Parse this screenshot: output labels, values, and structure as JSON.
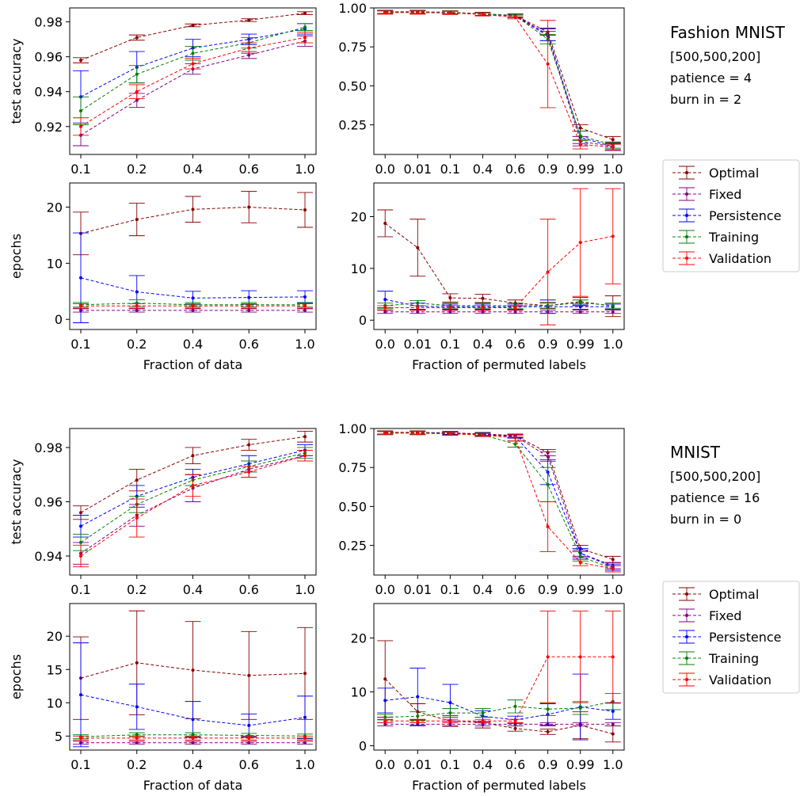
{
  "figure": {
    "legend_labels": [
      "Optimal",
      "Fixed",
      "Persistence",
      "Training",
      "Validation"
    ],
    "series_colors": {
      "Optimal": "#8b0000",
      "Fixed": "#800080",
      "Persistence": "#0000ff",
      "Training": "#008000",
      "Validation": "#ff0000"
    },
    "blocks": [
      {
        "dataset": "Fashion MNIST",
        "architecture": "[500,500,200]",
        "patience": "patience = 4",
        "burn_in": "burn in = 2"
      },
      {
        "dataset": "MNIST",
        "architecture": "[500,500,200]",
        "patience": "patience = 16",
        "burn_in": "burn in = 0"
      }
    ]
  },
  "chart_data": [
    {
      "type": "line",
      "panel": "fashion-test-accuracy-vs-data-fraction",
      "xlabel": "",
      "ylabel": "test accuracy",
      "categories": [
        "0.1",
        "0.2",
        "0.4",
        "0.6",
        "1.0"
      ],
      "ylim": [
        0.904,
        0.988
      ],
      "yticks": [
        0.92,
        0.94,
        0.96,
        0.98
      ],
      "ytick_labels": [
        "0.92",
        "0.94",
        "0.96",
        "0.98"
      ],
      "series": [
        {
          "name": "Optimal",
          "values": [
            0.958,
            0.971,
            0.978,
            0.981,
            0.985
          ],
          "errors": [
            0.0015,
            0.0015,
            0.0008,
            0.0008,
            0.0008
          ]
        },
        {
          "name": "Fixed",
          "values": [
            0.915,
            0.935,
            0.953,
            0.961,
            0.969
          ],
          "errors": [
            0.006,
            0.004,
            0.003,
            0.002,
            0.003
          ]
        },
        {
          "name": "Persistence",
          "values": [
            0.937,
            0.954,
            0.965,
            0.97,
            0.976
          ],
          "errors": [
            0.015,
            0.009,
            0.005,
            0.003,
            0.003
          ]
        },
        {
          "name": "Training",
          "values": [
            0.929,
            0.95,
            0.962,
            0.968,
            0.977
          ],
          "errors": [
            0.008,
            0.005,
            0.004,
            0.003,
            0.002
          ]
        },
        {
          "name": "Validation",
          "values": [
            0.92,
            0.94,
            0.956,
            0.965,
            0.971
          ],
          "errors": [
            0.005,
            0.004,
            0.003,
            0.003,
            0.003
          ]
        }
      ]
    },
    {
      "type": "line",
      "panel": "fashion-test-accuracy-vs-permuted-labels",
      "xlabel": "",
      "ylabel": "",
      "categories": [
        "0.0",
        "0.01",
        "0.1",
        "0.4",
        "0.6",
        "0.9",
        "0.99",
        "1.0"
      ],
      "ylim": [
        0.06,
        1.0
      ],
      "yticks": [
        0.25,
        0.5,
        0.75,
        1.0
      ],
      "ytick_labels": [
        "0.25",
        "0.50",
        "0.75",
        "1.00"
      ],
      "series": [
        {
          "name": "Optimal",
          "values": [
            0.975,
            0.975,
            0.972,
            0.962,
            0.952,
            0.845,
            0.23,
            0.155
          ],
          "errors": [
            0.01,
            0.01,
            0.01,
            0.01,
            0.01,
            0.02,
            0.02,
            0.02
          ]
        },
        {
          "name": "Fixed",
          "values": [
            0.972,
            0.972,
            0.97,
            0.96,
            0.948,
            0.82,
            0.145,
            0.11
          ],
          "errors": [
            0.01,
            0.01,
            0.01,
            0.01,
            0.01,
            0.03,
            0.03,
            0.02
          ]
        },
        {
          "name": "Persistence",
          "values": [
            0.972,
            0.972,
            0.97,
            0.96,
            0.95,
            0.83,
            0.17,
            0.11
          ],
          "errors": [
            0.01,
            0.01,
            0.01,
            0.01,
            0.01,
            0.04,
            0.04,
            0.02
          ]
        },
        {
          "name": "Training",
          "values": [
            0.972,
            0.972,
            0.97,
            0.96,
            0.95,
            0.8,
            0.18,
            0.12
          ],
          "errors": [
            0.01,
            0.01,
            0.01,
            0.01,
            0.01,
            0.03,
            0.03,
            0.02
          ]
        },
        {
          "name": "Validation",
          "values": [
            0.97,
            0.97,
            0.968,
            0.958,
            0.94,
            0.64,
            0.125,
            0.105
          ],
          "errors": [
            0.01,
            0.01,
            0.01,
            0.01,
            0.01,
            0.28,
            0.03,
            0.02
          ]
        }
      ]
    },
    {
      "type": "line",
      "panel": "fashion-epochs-vs-data-fraction",
      "xlabel": "Fraction of data",
      "ylabel": "epochs",
      "categories": [
        "0.1",
        "0.2",
        "0.4",
        "0.6",
        "1.0"
      ],
      "ylim": [
        -1.8,
        24.3
      ],
      "yticks": [
        0,
        10,
        20
      ],
      "ytick_labels": [
        "0",
        "10",
        "20"
      ],
      "series": [
        {
          "name": "Optimal",
          "values": [
            15.3,
            17.8,
            19.6,
            20.0,
            19.5
          ],
          "errors": [
            3.8,
            2.9,
            2.3,
            2.8,
            3.1
          ]
        },
        {
          "name": "Fixed",
          "values": [
            1.6,
            1.6,
            1.6,
            1.6,
            1.6
          ],
          "errors": [
            0.3,
            0.3,
            0.3,
            0.3,
            0.3
          ]
        },
        {
          "name": "Persistence",
          "values": [
            7.4,
            4.9,
            3.8,
            3.9,
            4.0
          ],
          "errors": [
            8.0,
            2.9,
            1.2,
            1.2,
            1.1
          ]
        },
        {
          "name": "Training",
          "values": [
            2.6,
            2.9,
            2.6,
            2.6,
            2.6
          ],
          "errors": [
            0.4,
            0.6,
            0.4,
            0.4,
            0.4
          ]
        },
        {
          "name": "Validation",
          "values": [
            2.4,
            2.4,
            2.4,
            2.4,
            2.4
          ],
          "errors": [
            0.4,
            0.4,
            0.4,
            0.4,
            0.4
          ]
        }
      ]
    },
    {
      "type": "line",
      "panel": "fashion-epochs-vs-permuted-labels",
      "xlabel": "Fraction of permuted labels",
      "ylabel": "",
      "categories": [
        "0.0",
        "0.01",
        "0.1",
        "0.4",
        "0.6",
        "0.9",
        "0.99",
        "1.0"
      ],
      "ylim": [
        -1.8,
        26.5
      ],
      "yticks": [
        0,
        10,
        20
      ],
      "ytick_labels": [
        "0",
        "10",
        "20"
      ],
      "series": [
        {
          "name": "Optimal",
          "values": [
            18.7,
            14.0,
            4.3,
            4.2,
            3.3,
            2.8,
            3.6,
            2.7
          ],
          "errors": [
            2.6,
            5.5,
            0.8,
            0.8,
            0.6,
            0.6,
            0.8,
            2.0
          ]
        },
        {
          "name": "Fixed",
          "values": [
            1.6,
            1.6,
            1.6,
            1.6,
            1.6,
            1.6,
            1.6,
            1.6
          ],
          "errors": [
            0.3,
            0.3,
            0.3,
            0.3,
            0.3,
            0.3,
            0.3,
            0.3
          ]
        },
        {
          "name": "Persistence",
          "values": [
            4.0,
            2.7,
            2.6,
            2.6,
            2.6,
            2.6,
            2.6,
            2.6
          ],
          "errors": [
            1.6,
            0.6,
            0.5,
            0.5,
            0.5,
            1.3,
            0.5,
            0.5
          ]
        },
        {
          "name": "Training",
          "values": [
            2.8,
            3.3,
            2.8,
            2.8,
            2.8,
            2.8,
            3.4,
            2.8
          ],
          "errors": [
            0.5,
            0.5,
            0.5,
            0.5,
            0.5,
            0.5,
            0.5,
            0.5
          ]
        },
        {
          "name": "Validation",
          "values": [
            2.4,
            2.4,
            2.4,
            2.4,
            2.4,
            9.3,
            15.0,
            16.2
          ],
          "errors": [
            0.4,
            0.4,
            0.4,
            0.4,
            0.4,
            10.2,
            10.4,
            9.2
          ]
        }
      ]
    },
    {
      "type": "line",
      "panel": "mnist-test-accuracy-vs-data-fraction",
      "xlabel": "",
      "ylabel": "test accuracy",
      "categories": [
        "0.1",
        "0.2",
        "0.4",
        "0.6",
        "1.0"
      ],
      "ylim": [
        0.933,
        0.987
      ],
      "yticks": [
        0.94,
        0.96,
        0.98
      ],
      "ytick_labels": [
        "0.94",
        "0.96",
        "0.98"
      ],
      "series": [
        {
          "name": "Optimal",
          "values": [
            0.956,
            0.968,
            0.977,
            0.981,
            0.984
          ],
          "errors": [
            0.0025,
            0.004,
            0.003,
            0.002,
            0.002
          ]
        },
        {
          "name": "Fixed",
          "values": [
            0.941,
            0.955,
            0.965,
            0.972,
            0.977
          ],
          "errors": [
            0.004,
            0.004,
            0.005,
            0.003,
            0.002
          ]
        },
        {
          "name": "Persistence",
          "values": [
            0.951,
            0.962,
            0.969,
            0.974,
            0.979
          ],
          "errors": [
            0.004,
            0.004,
            0.003,
            0.003,
            0.002
          ]
        },
        {
          "name": "Training",
          "values": [
            0.945,
            0.959,
            0.968,
            0.973,
            0.978
          ],
          "errors": [
            0.003,
            0.003,
            0.002,
            0.002,
            0.002
          ]
        },
        {
          "name": "Validation",
          "values": [
            0.94,
            0.954,
            0.966,
            0.971,
            0.977
          ],
          "errors": [
            0.004,
            0.007,
            0.004,
            0.002,
            0.002
          ]
        }
      ]
    },
    {
      "type": "line",
      "panel": "mnist-test-accuracy-vs-permuted-labels",
      "xlabel": "",
      "ylabel": "",
      "categories": [
        "0.0",
        "0.01",
        "0.1",
        "0.4",
        "0.6",
        "0.9",
        "0.99",
        "1.0"
      ],
      "ylim": [
        0.06,
        1.0
      ],
      "yticks": [
        0.25,
        0.5,
        0.75,
        1.0
      ],
      "ytick_labels": [
        "0.25",
        "0.50",
        "0.75",
        "1.00"
      ],
      "series": [
        {
          "name": "Optimal",
          "values": [
            0.975,
            0.975,
            0.972,
            0.965,
            0.955,
            0.845,
            0.23,
            0.16
          ],
          "errors": [
            0.01,
            0.01,
            0.01,
            0.01,
            0.01,
            0.02,
            0.02,
            0.02
          ]
        },
        {
          "name": "Fixed",
          "values": [
            0.972,
            0.972,
            0.97,
            0.962,
            0.952,
            0.82,
            0.2,
            0.12
          ],
          "errors": [
            0.01,
            0.01,
            0.01,
            0.01,
            0.01,
            0.03,
            0.02,
            0.02
          ]
        },
        {
          "name": "Persistence",
          "values": [
            0.972,
            0.972,
            0.97,
            0.962,
            0.948,
            0.72,
            0.2,
            0.11
          ],
          "errors": [
            0.01,
            0.01,
            0.01,
            0.01,
            0.01,
            0.08,
            0.03,
            0.02
          ]
        },
        {
          "name": "Training",
          "values": [
            0.972,
            0.972,
            0.968,
            0.96,
            0.9,
            0.64,
            0.18,
            0.1
          ],
          "errors": [
            0.01,
            0.01,
            0.01,
            0.01,
            0.02,
            0.11,
            0.03,
            0.02
          ]
        },
        {
          "name": "Validation",
          "values": [
            0.97,
            0.97,
            0.966,
            0.958,
            0.94,
            0.37,
            0.14,
            0.1
          ],
          "errors": [
            0.01,
            0.01,
            0.01,
            0.01,
            0.02,
            0.16,
            0.02,
            0.02
          ]
        }
      ]
    },
    {
      "type": "line",
      "panel": "mnist-epochs-vs-data-fraction",
      "xlabel": "Fraction of data",
      "ylabel": "epochs",
      "categories": [
        "0.1",
        "0.2",
        "0.4",
        "0.6",
        "1.0"
      ],
      "ylim": [
        2.9,
        24.9
      ],
      "yticks": [
        5,
        10,
        15,
        20
      ],
      "ytick_labels": [
        "5",
        "10",
        "15",
        "20"
      ],
      "series": [
        {
          "name": "Optimal",
          "values": [
            13.7,
            16.0,
            14.9,
            14.1,
            14.4
          ],
          "errors": [
            6.2,
            7.8,
            7.3,
            6.6,
            6.9
          ]
        },
        {
          "name": "Fixed",
          "values": [
            4.0,
            4.0,
            4.0,
            4.0,
            4.0
          ],
          "errors": [
            0.2,
            0.2,
            0.2,
            0.2,
            0.2
          ]
        },
        {
          "name": "Persistence",
          "values": [
            11.2,
            9.4,
            7.5,
            6.6,
            7.8
          ],
          "errors": [
            7.8,
            3.4,
            2.7,
            1.7,
            3.2
          ]
        },
        {
          "name": "Training",
          "values": [
            4.9,
            5.2,
            5.2,
            5.1,
            5.0
          ],
          "errors": [
            0.3,
            0.3,
            0.3,
            0.3,
            0.3
          ]
        },
        {
          "name": "Validation",
          "values": [
            4.7,
            4.7,
            4.7,
            4.7,
            4.7
          ],
          "errors": [
            0.3,
            0.3,
            0.3,
            0.3,
            0.3
          ]
        }
      ]
    },
    {
      "type": "line",
      "panel": "mnist-epochs-vs-permuted-labels",
      "xlabel": "Fraction of permuted labels",
      "ylabel": "",
      "categories": [
        "0.0",
        "0.01",
        "0.1",
        "0.4",
        "0.6",
        "0.9",
        "0.99",
        "1.0"
      ],
      "ylim": [
        -0.8,
        26.4
      ],
      "yticks": [
        0,
        10,
        20
      ],
      "ytick_labels": [
        "0",
        "10",
        "20"
      ],
      "series": [
        {
          "name": "Optimal",
          "values": [
            12.4,
            6.3,
            4.6,
            4.3,
            3.2,
            2.6,
            3.8,
            2.2
          ],
          "errors": [
            7.1,
            1.5,
            1.0,
            1.0,
            0.5,
            0.5,
            2.5,
            1.5
          ]
        },
        {
          "name": "Fixed",
          "values": [
            4.0,
            4.0,
            4.0,
            4.0,
            4.0,
            4.0,
            4.0,
            4.0
          ],
          "errors": [
            0.3,
            0.3,
            0.3,
            0.3,
            0.3,
            0.3,
            0.3,
            0.3
          ]
        },
        {
          "name": "Persistence",
          "values": [
            8.4,
            9.1,
            8.0,
            5.5,
            4.8,
            5.8,
            7.2,
            6.4
          ],
          "errors": [
            2.3,
            5.3,
            3.4,
            1.0,
            0.7,
            2.0,
            6.1,
            1.5
          ]
        },
        {
          "name": "Training",
          "values": [
            5.3,
            5.5,
            6.1,
            6.1,
            7.3,
            6.8,
            7.0,
            8.2
          ],
          "errors": [
            0.5,
            0.8,
            0.8,
            0.8,
            1.2,
            1.2,
            1.2,
            1.5
          ]
        },
        {
          "name": "Validation",
          "values": [
            4.6,
            4.6,
            4.6,
            4.6,
            4.6,
            16.5,
            16.5,
            16.5
          ],
          "errors": [
            0.3,
            0.3,
            0.3,
            0.3,
            0.3,
            8.5,
            8.5,
            8.5
          ]
        }
      ]
    }
  ]
}
